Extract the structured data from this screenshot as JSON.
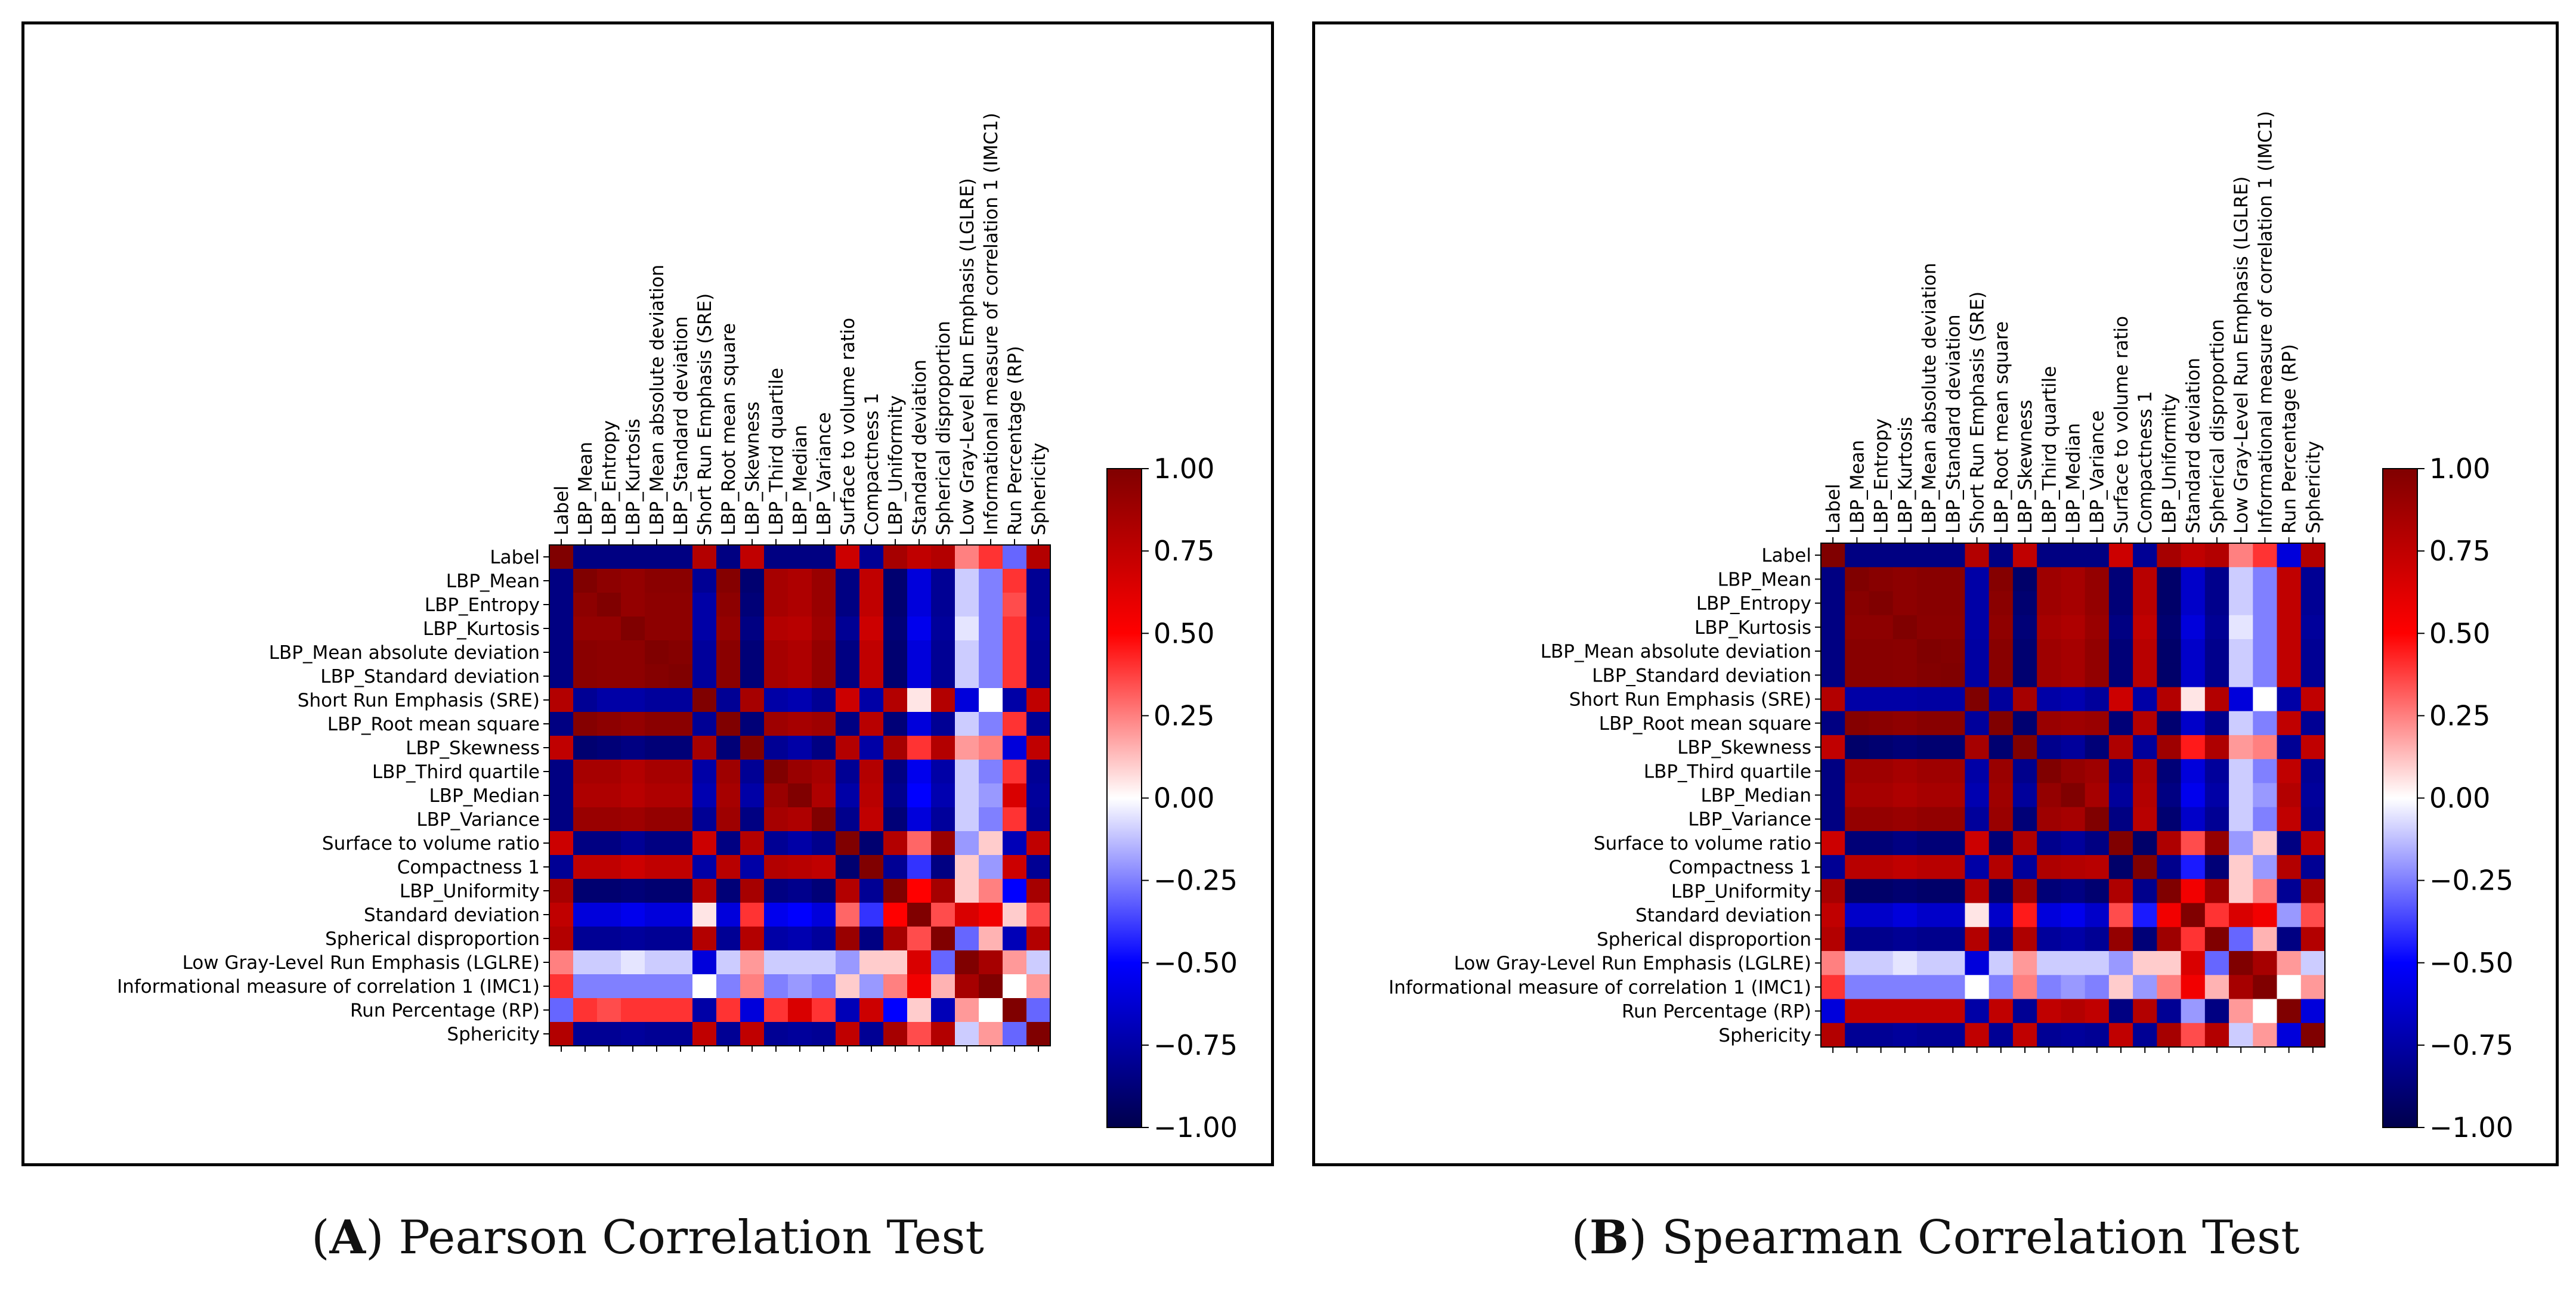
{
  "chart_data": [
    {
      "type": "heatmap",
      "title": "Pearson Correlation Test",
      "panel_letter": "A",
      "variables": [
        "Label",
        "LBP_Mean",
        "LBP_Entropy",
        "LBP_Kurtosis",
        "LBP_Mean absolute deviation",
        "LBP_Standard deviation",
        "Short Run Emphasis (SRE)",
        "LBP_Root mean square",
        "LBP_Skewness",
        "LBP_Third quartile",
        "LBP_Median",
        "LBP_Variance",
        "Surface to volume ratio",
        "Compactness 1",
        "LBP_Uniformity",
        "Standard deviation",
        "Spherical disproportion",
        "Low Gray-Level Run Emphasis (LGLRE)",
        "Informational measure of correlation 1 (IMC1)",
        "Run Percentage (RP)",
        "Sphericity"
      ],
      "colorbar": {
        "min": -1.0,
        "max": 1.0,
        "ticks": [
          "1.00",
          "0.75",
          "0.50",
          "0.25",
          "0.00",
          "−0.25",
          "−0.50",
          "−0.75",
          "−1.00"
        ]
      },
      "matrix": [
        [
          1.0,
          -0.85,
          -0.85,
          -0.85,
          -0.85,
          -0.85,
          0.8,
          -0.85,
          0.75,
          -0.85,
          -0.85,
          -0.85,
          0.7,
          -0.8,
          0.85,
          0.75,
          0.8,
          0.25,
          0.4,
          -0.3,
          0.8
        ],
        [
          -0.85,
          1.0,
          0.95,
          0.92,
          0.96,
          0.96,
          -0.8,
          0.98,
          -0.9,
          0.85,
          0.82,
          0.9,
          -0.85,
          0.75,
          -0.9,
          -0.6,
          -0.8,
          -0.1,
          -0.25,
          0.4,
          -0.8
        ],
        [
          -0.85,
          0.95,
          1.0,
          0.92,
          0.95,
          0.95,
          -0.75,
          0.95,
          -0.88,
          0.85,
          0.82,
          0.9,
          -0.85,
          0.75,
          -0.9,
          -0.6,
          -0.8,
          -0.1,
          -0.25,
          0.35,
          -0.8
        ],
        [
          -0.85,
          0.92,
          0.92,
          1.0,
          0.95,
          0.95,
          -0.75,
          0.92,
          -0.85,
          0.8,
          0.78,
          0.88,
          -0.8,
          0.7,
          -0.88,
          -0.55,
          -0.78,
          -0.05,
          -0.25,
          0.4,
          -0.78
        ],
        [
          -0.85,
          0.96,
          0.95,
          0.95,
          1.0,
          0.98,
          -0.78,
          0.96,
          -0.88,
          0.85,
          0.82,
          0.92,
          -0.85,
          0.75,
          -0.9,
          -0.6,
          -0.8,
          -0.1,
          -0.25,
          0.4,
          -0.8
        ],
        [
          -0.85,
          0.96,
          0.95,
          0.95,
          0.98,
          1.0,
          -0.78,
          0.96,
          -0.88,
          0.85,
          0.82,
          0.92,
          -0.85,
          0.75,
          -0.9,
          -0.6,
          -0.8,
          -0.1,
          -0.25,
          0.4,
          -0.8
        ],
        [
          0.8,
          -0.8,
          -0.75,
          -0.75,
          -0.78,
          -0.78,
          1.0,
          -0.8,
          0.85,
          -0.75,
          -0.72,
          -0.8,
          0.7,
          -0.75,
          0.8,
          0.05,
          0.8,
          -0.6,
          0.0,
          -0.75,
          0.75
        ],
        [
          -0.85,
          0.98,
          0.95,
          0.92,
          0.96,
          0.96,
          -0.8,
          1.0,
          -0.88,
          0.88,
          0.85,
          0.88,
          -0.85,
          0.78,
          -0.88,
          -0.6,
          -0.8,
          -0.1,
          -0.25,
          0.4,
          -0.8
        ],
        [
          0.75,
          -0.9,
          -0.88,
          -0.85,
          -0.88,
          -0.88,
          0.85,
          -0.88,
          1.0,
          -0.8,
          -0.75,
          -0.85,
          0.8,
          -0.75,
          0.85,
          0.4,
          0.8,
          0.2,
          0.25,
          -0.6,
          0.75
        ],
        [
          -0.85,
          0.85,
          0.85,
          0.8,
          0.85,
          0.85,
          -0.75,
          0.88,
          -0.8,
          1.0,
          0.9,
          0.85,
          -0.8,
          0.8,
          -0.85,
          -0.55,
          -0.75,
          -0.1,
          -0.25,
          0.4,
          -0.8
        ],
        [
          -0.85,
          0.82,
          0.82,
          0.78,
          0.82,
          0.82,
          -0.72,
          0.85,
          -0.75,
          0.9,
          1.0,
          0.82,
          -0.75,
          0.78,
          -0.82,
          -0.5,
          -0.72,
          -0.1,
          -0.2,
          0.65,
          -0.78
        ],
        [
          -0.85,
          0.9,
          0.9,
          0.88,
          0.92,
          0.92,
          -0.8,
          0.88,
          -0.85,
          0.85,
          0.82,
          1.0,
          -0.82,
          0.75,
          -0.88,
          -0.6,
          -0.78,
          -0.1,
          -0.25,
          0.4,
          -0.8
        ],
        [
          0.7,
          -0.85,
          -0.85,
          -0.8,
          -0.85,
          -0.85,
          0.7,
          -0.85,
          0.8,
          -0.8,
          -0.75,
          -0.82,
          1.0,
          -0.9,
          0.8,
          0.3,
          0.9,
          -0.2,
          0.1,
          -0.7,
          0.75
        ],
        [
          -0.8,
          0.75,
          0.75,
          0.7,
          0.75,
          0.75,
          -0.75,
          0.78,
          -0.75,
          0.8,
          0.78,
          0.75,
          -0.9,
          1.0,
          -0.8,
          -0.4,
          -0.85,
          0.1,
          -0.2,
          0.7,
          -0.8
        ],
        [
          0.85,
          -0.9,
          -0.9,
          -0.88,
          -0.9,
          -0.9,
          0.8,
          -0.88,
          0.85,
          -0.85,
          -0.82,
          -0.88,
          0.8,
          -0.8,
          1.0,
          0.5,
          0.85,
          0.1,
          0.25,
          -0.5,
          0.85
        ],
        [
          0.75,
          -0.6,
          -0.6,
          -0.55,
          -0.6,
          -0.6,
          0.05,
          -0.6,
          0.4,
          -0.55,
          -0.5,
          -0.6,
          0.3,
          -0.4,
          0.5,
          1.0,
          0.35,
          0.65,
          0.55,
          0.1,
          0.35
        ],
        [
          0.8,
          -0.8,
          -0.8,
          -0.78,
          -0.8,
          -0.8,
          0.8,
          -0.8,
          0.8,
          -0.75,
          -0.72,
          -0.78,
          0.9,
          -0.85,
          0.85,
          0.35,
          1.0,
          -0.3,
          0.15,
          -0.7,
          0.8
        ],
        [
          0.25,
          -0.1,
          -0.1,
          -0.05,
          -0.1,
          -0.1,
          -0.6,
          -0.1,
          0.2,
          -0.1,
          -0.1,
          -0.1,
          -0.2,
          0.1,
          0.1,
          0.65,
          -0.3,
          1.0,
          0.85,
          0.2,
          -0.1
        ],
        [
          0.4,
          -0.25,
          -0.25,
          -0.25,
          -0.25,
          -0.25,
          0.0,
          -0.25,
          0.25,
          -0.25,
          -0.2,
          -0.25,
          0.1,
          -0.2,
          0.25,
          0.55,
          0.15,
          0.85,
          1.0,
          0.0,
          0.2
        ],
        [
          -0.3,
          0.4,
          0.35,
          0.4,
          0.4,
          0.4,
          -0.75,
          0.4,
          -0.6,
          0.4,
          0.65,
          0.4,
          -0.7,
          0.7,
          -0.5,
          0.1,
          -0.7,
          0.2,
          0.0,
          1.0,
          -0.3
        ],
        [
          0.8,
          -0.8,
          -0.8,
          -0.78,
          -0.8,
          -0.8,
          0.75,
          -0.8,
          0.75,
          -0.8,
          -0.78,
          -0.8,
          0.75,
          -0.8,
          0.85,
          0.35,
          0.8,
          -0.1,
          0.2,
          -0.3,
          1.0
        ]
      ]
    },
    {
      "type": "heatmap",
      "title": "Spearman Correlation Test",
      "panel_letter": "B",
      "variables": [
        "Label",
        "LBP_Mean",
        "LBP_Entropy",
        "LBP_Kurtosis",
        "LBP_Mean absolute deviation",
        "LBP_Standard deviation",
        "Short Run Emphasis (SRE)",
        "LBP_Root mean square",
        "LBP_Skewness",
        "LBP_Third quartile",
        "LBP_Median",
        "LBP_Variance",
        "Surface to volume ratio",
        "Compactness 1",
        "LBP_Uniformity",
        "Standard deviation",
        "Spherical disproportion",
        "Low Gray-Level Run Emphasis (LGLRE)",
        "Informational measure of correlation 1 (IMC1)",
        "Run Percentage (RP)",
        "Sphericity"
      ],
      "colorbar": {
        "min": -1.0,
        "max": 1.0,
        "ticks": [
          "1.00",
          "0.75",
          "0.50",
          "0.25",
          "0.00",
          "−0.25",
          "−0.50",
          "−0.75",
          "−1.00"
        ]
      },
      "matrix": [
        [
          1.0,
          -0.85,
          -0.85,
          -0.85,
          -0.85,
          -0.85,
          0.8,
          -0.85,
          0.75,
          -0.85,
          -0.85,
          -0.85,
          0.7,
          -0.8,
          0.85,
          0.75,
          0.8,
          0.25,
          0.4,
          -0.6,
          0.8
        ],
        [
          -0.85,
          1.0,
          0.97,
          0.95,
          0.97,
          0.97,
          -0.75,
          0.98,
          -0.92,
          0.88,
          0.85,
          0.92,
          -0.88,
          0.78,
          -0.92,
          -0.65,
          -0.82,
          -0.1,
          -0.25,
          0.75,
          -0.8
        ],
        [
          -0.85,
          0.97,
          1.0,
          0.95,
          0.97,
          0.97,
          -0.75,
          0.96,
          -0.9,
          0.88,
          0.85,
          0.92,
          -0.88,
          0.78,
          -0.92,
          -0.65,
          -0.82,
          -0.1,
          -0.25,
          0.75,
          -0.8
        ],
        [
          -0.85,
          0.95,
          0.95,
          1.0,
          0.96,
          0.96,
          -0.75,
          0.94,
          -0.88,
          0.85,
          0.82,
          0.9,
          -0.85,
          0.75,
          -0.9,
          -0.6,
          -0.8,
          -0.05,
          -0.25,
          0.75,
          -0.78
        ],
        [
          -0.85,
          0.97,
          0.97,
          0.96,
          1.0,
          0.99,
          -0.76,
          0.97,
          -0.9,
          0.88,
          0.85,
          0.93,
          -0.88,
          0.78,
          -0.92,
          -0.65,
          -0.82,
          -0.1,
          -0.25,
          0.75,
          -0.8
        ],
        [
          -0.85,
          0.97,
          0.97,
          0.96,
          0.99,
          1.0,
          -0.76,
          0.97,
          -0.9,
          0.88,
          0.85,
          0.93,
          -0.88,
          0.78,
          -0.92,
          -0.65,
          -0.82,
          -0.1,
          -0.25,
          0.75,
          -0.8
        ],
        [
          0.8,
          -0.75,
          -0.75,
          -0.75,
          -0.76,
          -0.76,
          1.0,
          -0.78,
          0.85,
          -0.75,
          -0.72,
          -0.78,
          0.7,
          -0.75,
          0.8,
          0.05,
          0.8,
          -0.6,
          0.0,
          -0.75,
          0.75
        ],
        [
          -0.85,
          0.98,
          0.96,
          0.94,
          0.97,
          0.97,
          -0.78,
          1.0,
          -0.9,
          0.9,
          0.88,
          0.9,
          -0.88,
          0.8,
          -0.9,
          -0.65,
          -0.82,
          -0.1,
          -0.25,
          0.75,
          -0.8
        ],
        [
          0.75,
          -0.92,
          -0.9,
          -0.88,
          -0.9,
          -0.9,
          0.85,
          -0.9,
          1.0,
          -0.82,
          -0.78,
          -0.88,
          0.82,
          -0.78,
          0.88,
          0.45,
          0.82,
          0.2,
          0.25,
          -0.8,
          0.75
        ],
        [
          -0.85,
          0.88,
          0.88,
          0.85,
          0.88,
          0.88,
          -0.75,
          0.9,
          -0.82,
          1.0,
          0.92,
          0.88,
          -0.82,
          0.82,
          -0.88,
          -0.6,
          -0.78,
          -0.1,
          -0.25,
          0.75,
          -0.8
        ],
        [
          -0.85,
          0.85,
          0.85,
          0.82,
          0.85,
          0.85,
          -0.72,
          0.88,
          -0.78,
          0.92,
          1.0,
          0.85,
          -0.78,
          0.8,
          -0.85,
          -0.55,
          -0.75,
          -0.1,
          -0.2,
          0.8,
          -0.78
        ],
        [
          -0.85,
          0.92,
          0.92,
          0.9,
          0.93,
          0.93,
          -0.78,
          0.9,
          -0.88,
          0.88,
          0.85,
          1.0,
          -0.85,
          0.78,
          -0.9,
          -0.65,
          -0.8,
          -0.1,
          -0.25,
          0.75,
          -0.8
        ],
        [
          0.7,
          -0.88,
          -0.88,
          -0.85,
          -0.88,
          -0.88,
          0.7,
          -0.88,
          0.82,
          -0.82,
          -0.78,
          -0.85,
          1.0,
          -0.92,
          0.82,
          0.35,
          0.92,
          -0.2,
          0.1,
          -0.85,
          0.75
        ],
        [
          -0.8,
          0.78,
          0.78,
          0.75,
          0.78,
          0.78,
          -0.75,
          0.8,
          -0.78,
          0.82,
          0.8,
          0.78,
          -0.92,
          1.0,
          -0.82,
          -0.45,
          -0.88,
          0.1,
          -0.2,
          0.8,
          -0.8
        ],
        [
          0.85,
          -0.92,
          -0.92,
          -0.9,
          -0.92,
          -0.92,
          0.8,
          -0.9,
          0.88,
          -0.88,
          -0.85,
          -0.9,
          0.82,
          -0.82,
          1.0,
          0.55,
          0.88,
          0.1,
          0.25,
          -0.8,
          0.85
        ],
        [
          0.75,
          -0.65,
          -0.65,
          -0.6,
          -0.65,
          -0.65,
          0.05,
          -0.65,
          0.45,
          -0.6,
          -0.55,
          -0.65,
          0.35,
          -0.45,
          0.55,
          1.0,
          0.4,
          0.65,
          0.55,
          -0.2,
          0.35
        ],
        [
          0.8,
          -0.82,
          -0.82,
          -0.8,
          -0.82,
          -0.82,
          0.8,
          -0.82,
          0.82,
          -0.78,
          -0.75,
          -0.8,
          0.92,
          -0.88,
          0.88,
          0.4,
          1.0,
          -0.3,
          0.15,
          -0.85,
          0.8
        ],
        [
          0.25,
          -0.1,
          -0.1,
          -0.05,
          -0.1,
          -0.1,
          -0.6,
          -0.1,
          0.2,
          -0.1,
          -0.1,
          -0.1,
          -0.2,
          0.1,
          0.1,
          0.65,
          -0.3,
          1.0,
          0.85,
          0.2,
          -0.1
        ],
        [
          0.4,
          -0.25,
          -0.25,
          -0.25,
          -0.25,
          -0.25,
          0.0,
          -0.25,
          0.25,
          -0.25,
          -0.2,
          -0.25,
          0.1,
          -0.2,
          0.25,
          0.55,
          0.15,
          0.85,
          1.0,
          0.0,
          0.2
        ],
        [
          -0.6,
          0.75,
          0.75,
          0.75,
          0.75,
          0.75,
          -0.75,
          0.75,
          -0.8,
          0.75,
          0.8,
          0.75,
          -0.85,
          0.8,
          -0.8,
          -0.2,
          -0.85,
          0.2,
          0.0,
          1.0,
          -0.6
        ],
        [
          0.8,
          -0.8,
          -0.8,
          -0.78,
          -0.8,
          -0.8,
          0.75,
          -0.8,
          0.75,
          -0.8,
          -0.78,
          -0.8,
          0.75,
          -0.8,
          0.85,
          0.35,
          0.8,
          -0.1,
          0.2,
          -0.6,
          1.0
        ]
      ]
    }
  ]
}
